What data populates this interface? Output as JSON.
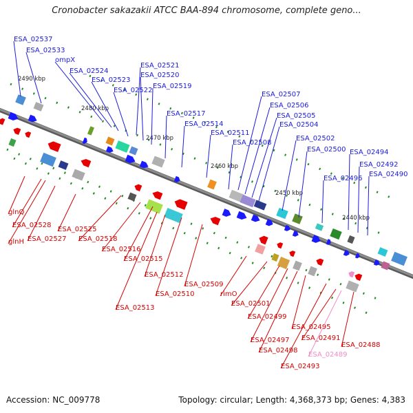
{
  "title": "Cronobacter sakazakii ATCC BAA-894 chromosome, complete geno...",
  "footer": {
    "accession": "Accession: NC_009778",
    "topology": "Topology: circular; Length: 4,368,373 bp; Genes: 4,383"
  },
  "colors": {
    "top_strand": "#1a1aff",
    "bottom_strand": "#e60000",
    "highlight": "#f08cc8",
    "backbone": "#8c8c8c",
    "tick": "#228b22"
  },
  "scale": [
    "2490 kbp",
    "2480 kbp",
    "2470 kbp",
    "2460 kbp",
    "2450 kbp",
    "2440 kbp"
  ],
  "top_genes": [
    "ESA_02537",
    "ESA_02533",
    "ompX",
    "ESA_02524",
    "ESA_02523",
    "ESA_02522",
    "ESA_02521",
    "ESA_02520",
    "ESA_02519",
    "ESA_02517",
    "ESA_02514",
    "ESA_02511",
    "ESA_02508",
    "ESA_02507",
    "ESA_02506",
    "ESA_02505",
    "ESA_02504",
    "ESA_02502",
    "ESA_02500",
    "ESA_02496",
    "ESA_02494",
    "ESA_02492",
    "ESA_02490"
  ],
  "bottom_genes": [
    "glnQ",
    "ESA_02528",
    "glnH",
    "ESA_02527",
    "ESA_02525",
    "ESA_02518",
    "ESA_02516",
    "ESA_02515",
    "ESA_02512",
    "ESA_02513",
    "ESA_02510",
    "ESA_02509",
    "rimO",
    "ESA_02501",
    "ESA_02499",
    "ESA_02497",
    "ESA_02498",
    "ESA_02495",
    "ESA_02493",
    "ESA_02491",
    "ESA_02489",
    "ESA_02488"
  ]
}
